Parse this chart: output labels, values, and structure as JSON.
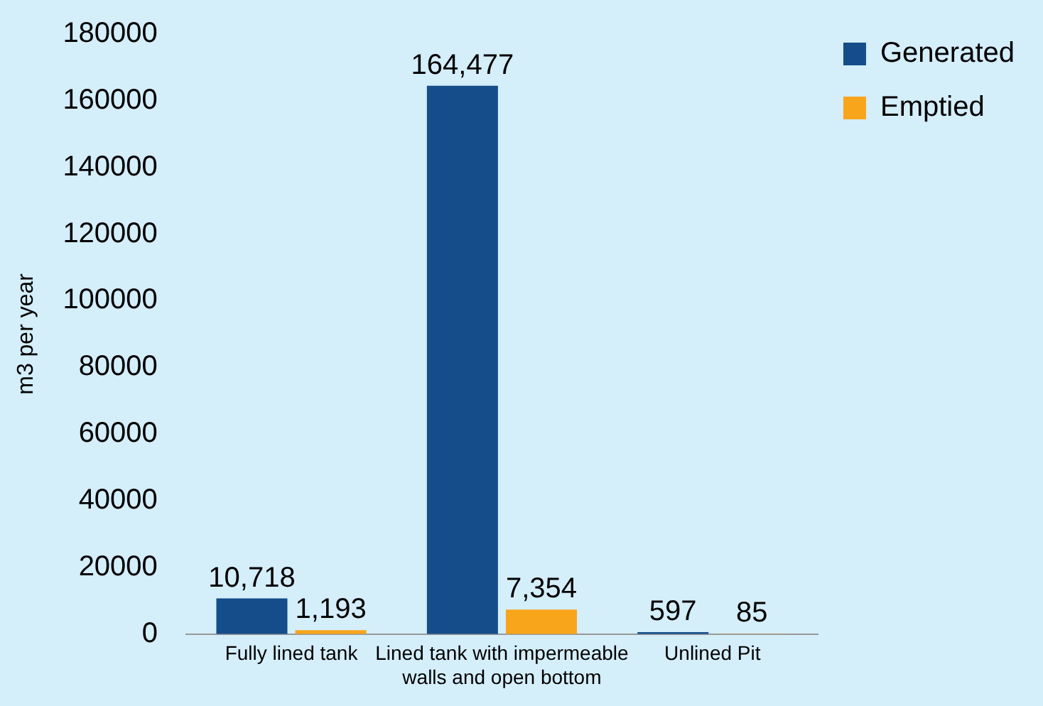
{
  "chart_data": {
    "type": "bar",
    "ylabel": "m3 per year",
    "categories": [
      "Fully lined tank",
      "Lined tank with impermeable walls and open bottom",
      "Unlined Pit"
    ],
    "series": [
      {
        "name": "Generated",
        "color": "#154d8a",
        "values": [
          10718,
          164477,
          597
        ],
        "value_labels": [
          "10,718",
          "164,477",
          "597"
        ]
      },
      {
        "name": "Emptied",
        "color": "#f8a51c",
        "values": [
          1193,
          7354,
          85
        ],
        "value_labels": [
          "1,193",
          "7,354",
          "85"
        ]
      }
    ],
    "ylim": [
      0,
      180000
    ],
    "yticks": [
      0,
      20000,
      40000,
      60000,
      80000,
      100000,
      120000,
      140000,
      160000,
      180000
    ],
    "grid": false,
    "legend": "top right"
  }
}
